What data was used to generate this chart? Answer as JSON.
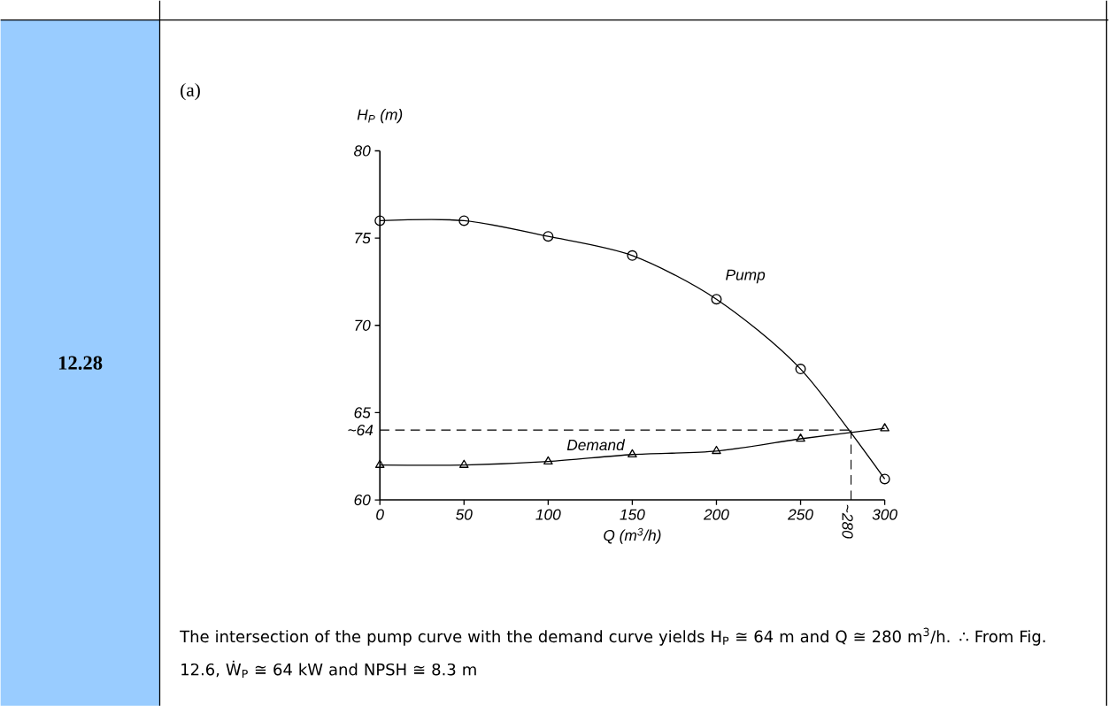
{
  "chart_data": {
    "type": "line",
    "x": [
      0,
      50,
      100,
      150,
      200,
      250,
      300
    ],
    "series": [
      {
        "name": "Pump",
        "color": "#000000",
        "marker": "circle",
        "values": [
          76,
          76,
          75.1,
          74.0,
          71.5,
          67.5,
          61.2
        ]
      },
      {
        "name": "Demand",
        "color": "#000000",
        "marker": "triangle",
        "values": [
          62.0,
          62.0,
          62.2,
          62.6,
          62.8,
          63.5,
          64.1
        ]
      }
    ],
    "xlabel": "Q (m$^{3}$/h)",
    "ylabel": "H$_{P}$ (m)",
    "xlim": [
      0,
      300
    ],
    "ylim": [
      60,
      80
    ],
    "xticks": [
      0,
      50,
      100,
      150,
      200,
      250,
      300
    ],
    "yticks": [
      60,
      65,
      70,
      75,
      80
    ],
    "ref_lines": [
      {
        "axis": "y",
        "value": 64,
        "label": "~64",
        "line_style": "dashed"
      },
      {
        "axis": "x",
        "value": 280,
        "label": "~280",
        "line_style": "dashed"
      }
    ],
    "annotations": [
      "12.28",
      "(a)",
      "The intersection of the pump curve with the demand curve yields H$_{P}$ ≅ 64 m and Q ≅ 280 m$^{3}$/h.   ∴ From Fig. 12.6, Ẇ$_{P}$ ≅ 64 kW and NPSH ≅ 8.3 m"
    ]
  }
}
